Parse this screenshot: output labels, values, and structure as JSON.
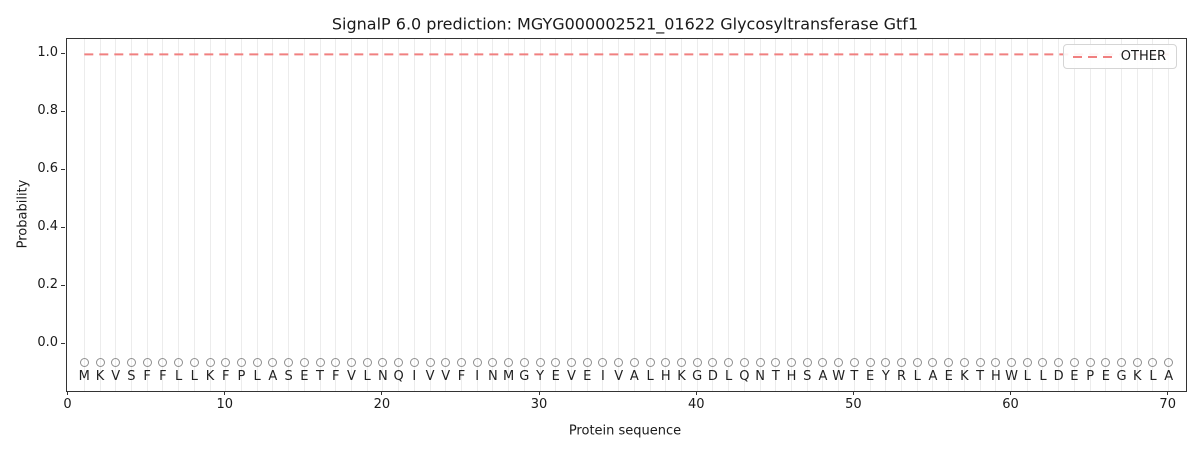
{
  "figure": {
    "title": "SignalP 6.0 prediction: MGYG000002521_01622 Glycosyltransferase Gtf1"
  },
  "axes": {
    "xlabel": "Protein sequence",
    "ylabel": "Probability",
    "xtick_labels": [
      "0",
      "10",
      "20",
      "30",
      "40",
      "50",
      "60",
      "70"
    ],
    "ytick_labels": [
      "0.0",
      "0.2",
      "0.4",
      "0.6",
      "0.8",
      "1.0"
    ]
  },
  "legend": {
    "label": "OTHER",
    "line_color": "#f08080",
    "line_style": "dashed"
  },
  "colors": {
    "line": "#f08080",
    "grid": "#ececec",
    "marker_outline": "#8f8f8f",
    "spine": "#333333",
    "text": "#1a1a1a"
  },
  "chart_data": {
    "type": "line",
    "title": "SignalP 6.0 prediction: MGYG000002521_01622 Glycosyltransferase Gtf1",
    "xlabel": "Protein sequence",
    "ylabel": "Probability",
    "xlim": [
      -0.1,
      71.1
    ],
    "ylim": [
      -0.162,
      1.052
    ],
    "xticks": [
      0,
      10,
      20,
      30,
      40,
      50,
      60,
      70
    ],
    "yticks": [
      0.0,
      0.2,
      0.4,
      0.6,
      0.8,
      1.0
    ],
    "grid": "vertical-line-per-residue",
    "legend_position": "upper right",
    "sequence": "MKVSFFLLKFPLASETFVLNQIVVFINMGYEVEIVALHKGDLQNTHSAWTEYRLAEKTHWLLDEPEGKLA",
    "sequence_markers": {
      "symbol": "circle-outline",
      "marker_y": -0.064,
      "letter_y": -0.112
    },
    "series": [
      {
        "name": "OTHER",
        "style": "dashed",
        "color": "#f08080",
        "x": [
          1,
          2,
          3,
          4,
          5,
          6,
          7,
          8,
          9,
          10,
          11,
          12,
          13,
          14,
          15,
          16,
          17,
          18,
          19,
          20,
          21,
          22,
          23,
          24,
          25,
          26,
          27,
          28,
          29,
          30,
          31,
          32,
          33,
          34,
          35,
          36,
          37,
          38,
          39,
          40,
          41,
          42,
          43,
          44,
          45,
          46,
          47,
          48,
          49,
          50,
          51,
          52,
          53,
          54,
          55,
          56,
          57,
          58,
          59,
          60,
          61,
          62,
          63,
          64,
          65,
          66,
          67,
          68,
          69,
          70
        ],
        "values": [
          0.999,
          0.999,
          0.999,
          0.999,
          0.999,
          0.999,
          0.999,
          0.999,
          0.999,
          0.999,
          0.999,
          0.999,
          0.999,
          0.999,
          0.999,
          0.999,
          0.999,
          0.999,
          0.999,
          0.999,
          0.999,
          0.999,
          0.999,
          0.999,
          0.999,
          0.999,
          0.999,
          0.999,
          0.999,
          0.999,
          0.999,
          0.999,
          0.999,
          0.999,
          0.999,
          0.999,
          0.999,
          0.999,
          0.999,
          0.999,
          0.999,
          0.999,
          0.999,
          0.999,
          0.999,
          0.999,
          0.999,
          0.999,
          0.999,
          0.999,
          0.999,
          0.999,
          0.999,
          0.999,
          0.999,
          0.999,
          0.999,
          0.999,
          0.999,
          0.999,
          0.999,
          0.999,
          0.999,
          0.999,
          0.999,
          0.999,
          0.999,
          0.999,
          0.999,
          0.999
        ]
      }
    ]
  }
}
